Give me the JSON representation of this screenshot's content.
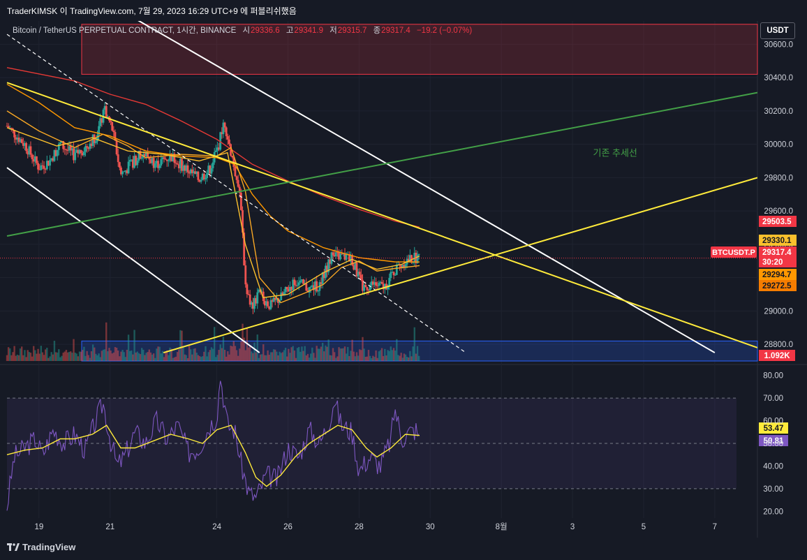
{
  "header": {
    "caption": "TraderKIMSK 이 TradingView.com, 7월 29, 2023 16:29 UTC+9 에 퍼블리쉬했음",
    "symbol": "Bitcoin / TetherUS PERPETUAL CONTRACT, 1시간, BINANCE",
    "ohlc": [
      {
        "label": "시",
        "value": "29336.6"
      },
      {
        "label": "고",
        "value": "29341.9"
      },
      {
        "label": "저",
        "value": "29315.7"
      },
      {
        "label": "종",
        "value": "29317.4"
      }
    ],
    "change": "−19.2 (−0.07%)",
    "currency_button": "USDT"
  },
  "footer": {
    "logo": "TradingView"
  },
  "colors": {
    "background": "#161a25",
    "up": "#26a69a",
    "down": "#ef5350",
    "trend_white": "#ffffff",
    "trend_yellow": "#ffeb3b",
    "trend_green": "#43a047",
    "ma_red": "#e53935",
    "ma_orange": "#ff9800",
    "ma_gold": "#f9a825",
    "rsi_line": "#7e57c2",
    "rsi_ma": "#ffeb3b",
    "supply_zone": "#f23645",
    "demand_zone": "#2962ff"
  },
  "chart_data": [
    {
      "type": "candlestick",
      "name": "price",
      "x_axis": {
        "ticks": [
          "19",
          "21",
          "24",
          "26",
          "28",
          "30",
          "8월",
          "3",
          "5",
          "7"
        ],
        "tick_days": [
          19,
          21,
          24,
          26,
          28,
          30,
          32,
          34,
          36,
          38
        ],
        "xlim_days": [
          18.1,
          39.2
        ]
      },
      "y_axis": {
        "ticks": [
          "28800.0",
          "29000.0",
          "29200.0",
          "29400.0",
          "29600.0",
          "29800.0",
          "30000.0",
          "30200.0",
          "30400.0",
          "30600.0"
        ],
        "ylim": [
          28700,
          30740
        ]
      },
      "price_labels": [
        {
          "text": "29503.5",
          "value": 29503.5,
          "color": "#f23645"
        },
        {
          "text": "29330.1",
          "value": 29330.1,
          "color": "#fbc02d"
        },
        {
          "text": "29317.4",
          "value": 29317.4,
          "color": "#f23645"
        },
        {
          "text": "30:20",
          "value": 29270,
          "color": "#f23645"
        },
        {
          "text": "29294.7",
          "value": 29294.7,
          "color": "#ff9800"
        },
        {
          "text": "29272.5",
          "value": 29272.5,
          "color": "#f57c00"
        }
      ],
      "symbol_tag": "BTCUSDT.P",
      "volume_label": "1.092K",
      "annotation": {
        "text": "기존 추세선",
        "day": 35.2,
        "value": 29930
      },
      "key_points": [
        {
          "day": 18.1,
          "value": 30110
        },
        {
          "day": 18.6,
          "value": 30000
        },
        {
          "day": 19.0,
          "value": 29860
        },
        {
          "day": 19.3,
          "value": 29900
        },
        {
          "day": 19.6,
          "value": 30000
        },
        {
          "day": 20.0,
          "value": 29930
        },
        {
          "day": 20.3,
          "value": 29980
        },
        {
          "day": 20.6,
          "value": 30050
        },
        {
          "day": 20.85,
          "value": 30200
        },
        {
          "day": 21.05,
          "value": 30100
        },
        {
          "day": 21.3,
          "value": 29820
        },
        {
          "day": 21.6,
          "value": 29880
        },
        {
          "day": 21.9,
          "value": 29950
        },
        {
          "day": 22.3,
          "value": 29880
        },
        {
          "day": 22.7,
          "value": 29930
        },
        {
          "day": 23.1,
          "value": 29860
        },
        {
          "day": 23.5,
          "value": 29790
        },
        {
          "day": 23.8,
          "value": 29850
        },
        {
          "day": 24.05,
          "value": 29990
        },
        {
          "day": 24.2,
          "value": 30150
        },
        {
          "day": 24.45,
          "value": 29900
        },
        {
          "day": 24.65,
          "value": 29700
        },
        {
          "day": 24.8,
          "value": 29180
        },
        {
          "day": 24.95,
          "value": 29020
        },
        {
          "day": 25.2,
          "value": 29100
        },
        {
          "day": 25.5,
          "value": 29030
        },
        {
          "day": 25.8,
          "value": 29080
        },
        {
          "day": 26.2,
          "value": 29180
        },
        {
          "day": 26.6,
          "value": 29130
        },
        {
          "day": 26.9,
          "value": 29160
        },
        {
          "day": 27.2,
          "value": 29320
        },
        {
          "day": 27.5,
          "value": 29330
        },
        {
          "day": 27.8,
          "value": 29310
        },
        {
          "day": 28.1,
          "value": 29140
        },
        {
          "day": 28.4,
          "value": 29160
        },
        {
          "day": 28.7,
          "value": 29140
        },
        {
          "day": 29.0,
          "value": 29240
        },
        {
          "day": 29.3,
          "value": 29300
        },
        {
          "day": 29.6,
          "value": 29320
        },
        {
          "day": 29.7,
          "value": 29317
        }
      ],
      "moving_averages": [
        {
          "color": "#e53935",
          "points": [
            [
              18.1,
              30460
            ],
            [
              20.0,
              30380
            ],
            [
              21.0,
              30300
            ],
            [
              22.0,
              30240
            ],
            [
              23.0,
              30140
            ],
            [
              24.0,
              30030
            ],
            [
              25.0,
              29880
            ],
            [
              26.0,
              29780
            ],
            [
              27.0,
              29690
            ],
            [
              28.0,
              29610
            ],
            [
              29.0,
              29540
            ],
            [
              29.7,
              29503
            ]
          ]
        },
        {
          "color": "#ff9800",
          "points": [
            [
              18.1,
              30360
            ],
            [
              19.0,
              30250
            ],
            [
              20.0,
              30100
            ],
            [
              21.0,
              30050
            ],
            [
              22.0,
              29960
            ],
            [
              23.0,
              29930
            ],
            [
              24.0,
              29920
            ],
            [
              24.5,
              29880
            ],
            [
              25.0,
              29700
            ],
            [
              25.5,
              29570
            ],
            [
              26.0,
              29480
            ],
            [
              27.0,
              29380
            ],
            [
              28.0,
              29320
            ],
            [
              29.0,
              29295
            ],
            [
              29.7,
              29294
            ]
          ]
        },
        {
          "color": "#f9a825",
          "points": [
            [
              18.1,
              30200
            ],
            [
              19.0,
              30080
            ],
            [
              20.0,
              29980
            ],
            [
              20.8,
              30060
            ],
            [
              21.5,
              29990
            ],
            [
              22.0,
              29920
            ],
            [
              23.0,
              29940
            ],
            [
              24.0,
              29930
            ],
            [
              24.4,
              29980
            ],
            [
              24.8,
              29720
            ],
            [
              25.2,
              29200
            ],
            [
              25.8,
              29050
            ],
            [
              26.5,
              29110
            ],
            [
              27.0,
              29160
            ],
            [
              27.5,
              29260
            ],
            [
              28.0,
              29300
            ],
            [
              28.5,
              29240
            ],
            [
              29.0,
              29255
            ],
            [
              29.7,
              29272
            ]
          ]
        },
        {
          "color": "#fbc02d",
          "points": [
            [
              18.1,
              30100
            ],
            [
              19.5,
              29990
            ],
            [
              20.5,
              30040
            ],
            [
              21.5,
              29960
            ],
            [
              22.5,
              29940
            ],
            [
              23.5,
              29900
            ],
            [
              24.3,
              29950
            ],
            [
              24.8,
              29400
            ],
            [
              25.3,
              29080
            ],
            [
              26.0,
              29100
            ],
            [
              27.0,
              29230
            ],
            [
              27.8,
              29310
            ],
            [
              28.5,
              29250
            ],
            [
              29.2,
              29280
            ],
            [
              29.7,
              29330
            ]
          ]
        }
      ],
      "trendlines": [
        {
          "color": "#ffffff",
          "style": "solid",
          "from": [
            21.0,
            30840
          ],
          "to": [
            38.0,
            28750
          ]
        },
        {
          "color": "#ffffff",
          "style": "solid",
          "from": [
            18.1,
            29860
          ],
          "to": [
            25.2,
            28750
          ]
        },
        {
          "color": "#ffffff",
          "style": "dashed",
          "from": [
            18.1,
            30660
          ],
          "to": [
            31.0,
            28750
          ]
        },
        {
          "color": "#ffeb3b",
          "style": "solid",
          "from": [
            18.1,
            30370
          ],
          "to": [
            39.2,
            28780
          ]
        },
        {
          "color": "#ffeb3b",
          "style": "solid",
          "from": [
            22.5,
            28750
          ],
          "to": [
            39.2,
            29800
          ]
        },
        {
          "color": "#43a047",
          "style": "solid",
          "from": [
            18.1,
            29450
          ],
          "to": [
            39.2,
            30310
          ]
        }
      ],
      "zones": [
        {
          "kind": "supply",
          "color": "#f23645",
          "day_start": 20.2,
          "day_end": 39.2,
          "value_low": 30420,
          "value_high": 30720
        },
        {
          "kind": "demand",
          "color": "#2962ff",
          "day_start": 20.2,
          "day_end": 39.2,
          "value_low": 28700,
          "value_high": 28820
        }
      ]
    },
    {
      "type": "line",
      "name": "RSI",
      "y_axis": {
        "ticks": [
          "20.00",
          "30.00",
          "40.00",
          "50.00",
          "60.00",
          "70.00",
          "80.00"
        ],
        "ylim": [
          17,
          83
        ]
      },
      "bands": {
        "upper": 70,
        "middle": 50,
        "lower": 30
      },
      "value_labels": [
        {
          "text": "53.47",
          "value": 53.47,
          "color": "#ffeb3b"
        },
        {
          "text": "50.81",
          "value": 50.81,
          "color": "#7e57c2"
        }
      ],
      "rsi_points": [
        [
          18.1,
          22
        ],
        [
          18.3,
          44
        ],
        [
          18.6,
          48
        ],
        [
          18.9,
          52
        ],
        [
          19.1,
          45
        ],
        [
          19.4,
          56
        ],
        [
          19.7,
          50
        ],
        [
          20.0,
          54
        ],
        [
          20.3,
          47
        ],
        [
          20.6,
          60
        ],
        [
          20.8,
          68
        ],
        [
          21.0,
          52
        ],
        [
          21.2,
          40
        ],
        [
          21.4,
          44
        ],
        [
          21.7,
          55
        ],
        [
          22.0,
          50
        ],
        [
          22.3,
          60
        ],
        [
          22.6,
          52
        ],
        [
          22.9,
          58
        ],
        [
          23.2,
          46
        ],
        [
          23.5,
          48
        ],
        [
          23.8,
          58
        ],
        [
          24.0,
          62
        ],
        [
          24.1,
          80
        ],
        [
          24.3,
          58
        ],
        [
          24.5,
          56
        ],
        [
          24.7,
          40
        ],
        [
          24.9,
          28
        ],
        [
          25.1,
          26
        ],
        [
          25.4,
          36
        ],
        [
          25.7,
          34
        ],
        [
          26.0,
          48
        ],
        [
          26.3,
          44
        ],
        [
          26.6,
          56
        ],
        [
          26.9,
          50
        ],
        [
          27.2,
          62
        ],
        [
          27.3,
          70
        ],
        [
          27.5,
          58
        ],
        [
          27.8,
          55
        ],
        [
          28.0,
          38
        ],
        [
          28.3,
          44
        ],
        [
          28.6,
          40
        ],
        [
          28.9,
          52
        ],
        [
          29.0,
          66
        ],
        [
          29.2,
          52
        ],
        [
          29.4,
          55
        ],
        [
          29.6,
          56
        ],
        [
          29.7,
          51
        ]
      ],
      "rsi_ma_points": [
        [
          18.1,
          45
        ],
        [
          18.6,
          47
        ],
        [
          19.1,
          48
        ],
        [
          19.6,
          52
        ],
        [
          20.0,
          52
        ],
        [
          20.5,
          54
        ],
        [
          20.9,
          58
        ],
        [
          21.3,
          48
        ],
        [
          21.7,
          48
        ],
        [
          22.2,
          51
        ],
        [
          22.7,
          54
        ],
        [
          23.2,
          52
        ],
        [
          23.6,
          50
        ],
        [
          24.0,
          56
        ],
        [
          24.4,
          58
        ],
        [
          24.8,
          46
        ],
        [
          25.1,
          35
        ],
        [
          25.4,
          31
        ],
        [
          25.8,
          36
        ],
        [
          26.2,
          44
        ],
        [
          26.6,
          50
        ],
        [
          27.0,
          54
        ],
        [
          27.4,
          58
        ],
        [
          27.8,
          56
        ],
        [
          28.2,
          48
        ],
        [
          28.5,
          44
        ],
        [
          28.9,
          48
        ],
        [
          29.3,
          54
        ],
        [
          29.7,
          53.5
        ]
      ]
    }
  ]
}
